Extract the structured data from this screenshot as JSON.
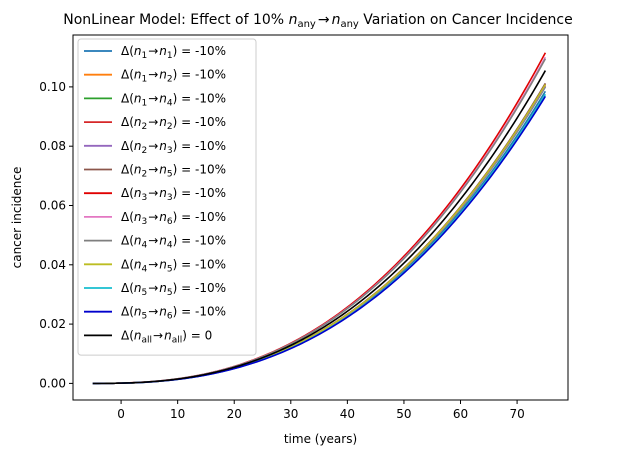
{
  "chart_data": {
    "type": "line",
    "title": "NonLinear Model: Effect of 10% n_any → n_any Variation on Cancer Incidence",
    "title_parts": {
      "prefix": "NonLinear Model: Effect of 10% ",
      "sym1": "n",
      "sub1": "any",
      "arrow": "→",
      "sym2": "n",
      "sub2": "any",
      "suffix": " Variation on Cancer Incidence"
    },
    "xlabel": "time (years)",
    "ylabel": "cancer incidence",
    "xlim": [
      -8.5,
      79
    ],
    "ylim": [
      -0.0056,
      0.1175
    ],
    "xticks": [
      0,
      10,
      20,
      30,
      40,
      50,
      60,
      70
    ],
    "yticks": [
      0.0,
      0.02,
      0.04,
      0.06,
      0.08,
      0.1
    ],
    "ytick_labels": [
      "0.00",
      "0.02",
      "0.04",
      "0.06",
      "0.08",
      "0.10"
    ],
    "legend_placement": "upper-left",
    "grid": false,
    "x_start": -5,
    "x_end": 75,
    "series": [
      {
        "name": "Δ(n1→n1) = -10%",
        "from": "1",
        "to": "1",
        "value_text": " = -10%",
        "color": "#1f77b4",
        "end_value": 0.0985
      },
      {
        "name": "Δ(n1→n2) = -10%",
        "from": "1",
        "to": "2",
        "value_text": " = -10%",
        "color": "#ff7f0e",
        "end_value": 0.1005
      },
      {
        "name": "Δ(n1→n4) = -10%",
        "from": "1",
        "to": "4",
        "value_text": " = -10%",
        "color": "#2ca02c",
        "end_value": 0.1
      },
      {
        "name": "Δ(n2→n2) = -10%",
        "from": "2",
        "to": "2",
        "value_text": " = -10%",
        "color": "#d62728",
        "end_value": 0.101
      },
      {
        "name": "Δ(n2→n3) = -10%",
        "from": "2",
        "to": "3",
        "value_text": " = -10%",
        "color": "#9467bd",
        "end_value": 0.1002
      },
      {
        "name": "Δ(n2→n5) = -10%",
        "from": "2",
        "to": "5",
        "value_text": " = -10%",
        "color": "#8c564b",
        "end_value": 0.1012
      },
      {
        "name": "Δ(n3→n3) = -10%",
        "from": "3",
        "to": "3",
        "value_text": " = -10%",
        "color": "#e00000",
        "end_value": 0.1115
      },
      {
        "name": "Δ(n3→n6) = -10%",
        "from": "3",
        "to": "6",
        "value_text": " = -10%",
        "color": "#e377c2",
        "end_value": 0.11
      },
      {
        "name": "Δ(n4→n4) = -10%",
        "from": "4",
        "to": "4",
        "value_text": " = -10%",
        "color": "#7f7f7f",
        "end_value": 0.1095
      },
      {
        "name": "Δ(n4→n5) = -10%",
        "from": "4",
        "to": "5",
        "value_text": " = -10%",
        "color": "#bcbd22",
        "end_value": 0.1008
      },
      {
        "name": "Δ(n5→n5) = -10%",
        "from": "5",
        "to": "5",
        "value_text": " = -10%",
        "color": "#17becf",
        "end_value": 0.0975
      },
      {
        "name": "Δ(n5→n6) = -10%",
        "from": "5",
        "to": "6",
        "value_text": " = -10%",
        "color": "#0000cc",
        "end_value": 0.0968
      },
      {
        "name": "Δ(nall→nall) = 0",
        "from": "all",
        "to": "all",
        "value_text": " = 0",
        "color": "#000000",
        "end_value": 0.1055
      }
    ]
  }
}
